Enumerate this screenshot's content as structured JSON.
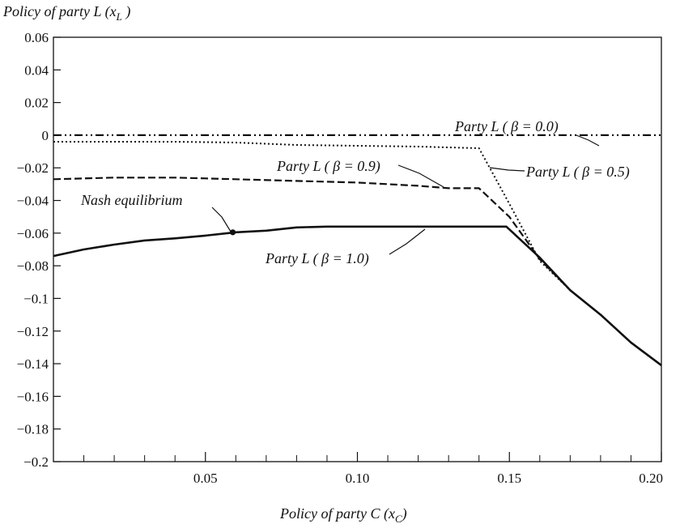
{
  "chart_data": {
    "type": "line",
    "title": "",
    "ylabel": "Policy of party L (x_L)",
    "xlabel": "Policy of party C (x_C)",
    "xlim": [
      0.0,
      0.2
    ],
    "ylim": [
      -0.2,
      0.06
    ],
    "x_ticks": [
      0.05,
      0.1,
      0.15,
      0.2
    ],
    "x_tick_labels": [
      "0.05",
      "0.10",
      "0.15",
      "0.20"
    ],
    "x_minor_ticks": [
      0.01,
      0.02,
      0.03,
      0.04,
      0.06,
      0.07,
      0.08,
      0.09,
      0.11,
      0.12,
      0.13,
      0.14,
      0.16,
      0.17,
      0.18,
      0.19
    ],
    "y_ticks": [
      -0.2,
      -0.18,
      -0.16,
      -0.14,
      -0.12,
      -0.1,
      -0.08,
      -0.06,
      -0.04,
      -0.02,
      0,
      0.02,
      0.04,
      0.06
    ],
    "y_tick_labels": [
      "−0.2",
      "−0.18",
      "−0.16",
      "−0.14",
      "−0.12",
      "−0.1",
      "−0.08",
      "−0.06",
      "−0.04",
      "−0.02",
      "0",
      "0.02",
      "0.04",
      "0.06"
    ],
    "grid": false,
    "series": [
      {
        "name": "Party L ( β = 0.0)",
        "style": "dashdot",
        "x": [
          0.0,
          0.05,
          0.1,
          0.15,
          0.2
        ],
        "y": [
          0.0,
          0.0,
          0.0,
          0.0,
          0.0
        ]
      },
      {
        "name": "Party L ( β = 0.5)",
        "style": "dotted",
        "x": [
          0.0,
          0.02,
          0.04,
          0.06,
          0.08,
          0.1,
          0.12,
          0.14,
          0.15,
          0.16,
          0.17,
          0.18,
          0.19,
          0.2
        ],
        "y": [
          -0.004,
          -0.004,
          -0.004,
          -0.0045,
          -0.006,
          -0.0065,
          -0.007,
          -0.008,
          -0.042,
          -0.077,
          -0.095,
          -0.11,
          -0.127,
          -0.141
        ]
      },
      {
        "name": "Party L ( β = 0.9)",
        "style": "dashed",
        "x": [
          0.0,
          0.02,
          0.04,
          0.06,
          0.08,
          0.1,
          0.12,
          0.13,
          0.14,
          0.15,
          0.16,
          0.17,
          0.18,
          0.19,
          0.2
        ],
        "y": [
          -0.027,
          -0.026,
          -0.026,
          -0.027,
          -0.028,
          -0.029,
          -0.031,
          -0.0325,
          -0.0325,
          -0.05,
          -0.076,
          -0.095,
          -0.11,
          -0.127,
          -0.141
        ]
      },
      {
        "name": "Party L ( β = 1.0)",
        "style": "solid",
        "x": [
          0.0,
          0.01,
          0.02,
          0.03,
          0.04,
          0.05,
          0.06,
          0.07,
          0.08,
          0.09,
          0.1,
          0.12,
          0.14,
          0.149,
          0.16,
          0.17,
          0.18,
          0.19,
          0.2
        ],
        "y": [
          -0.074,
          -0.07,
          -0.067,
          -0.0645,
          -0.0632,
          -0.0615,
          -0.0595,
          -0.0585,
          -0.0565,
          -0.056,
          -0.056,
          -0.056,
          -0.056,
          -0.056,
          -0.075,
          -0.095,
          -0.11,
          -0.127,
          -0.141
        ]
      }
    ],
    "nash_point": {
      "x": 0.059,
      "y": -0.0595
    },
    "annotations": [
      {
        "text": "Party L ( β = 0.0)"
      },
      {
        "text": "Party L ( β = 0.9)"
      },
      {
        "text": "Party L ( β = 0.5)"
      },
      {
        "text": "Nash equilibrium"
      },
      {
        "text": "Party L ( β = 1.0)"
      }
    ]
  }
}
